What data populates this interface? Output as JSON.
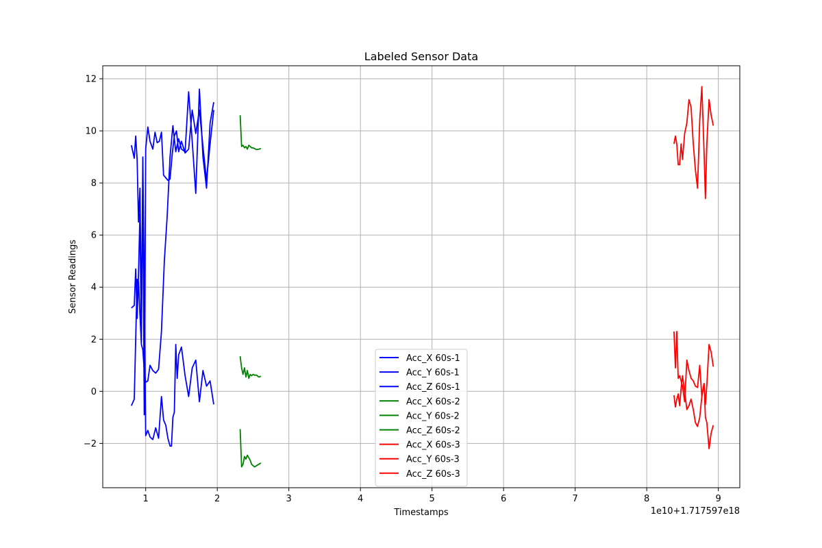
{
  "chart_data": {
    "type": "line",
    "title": "Labeled Sensor Data",
    "xlabel": "Timestamps",
    "ylabel": "Sensor Readings",
    "x_offset_label": "1e10+1.717597e18",
    "xlim": [
      0.4,
      9.3
    ],
    "ylim": [
      -3.7,
      12.5
    ],
    "x_ticks": [
      {
        "value": 1,
        "label": "1"
      },
      {
        "value": 2,
        "label": "2"
      },
      {
        "value": 3,
        "label": "3"
      },
      {
        "value": 4,
        "label": "4"
      },
      {
        "value": 5,
        "label": "5"
      },
      {
        "value": 6,
        "label": "6"
      },
      {
        "value": 7,
        "label": "7"
      },
      {
        "value": 8,
        "label": "8"
      },
      {
        "value": 9,
        "label": "9"
      }
    ],
    "y_ticks": [
      {
        "value": -2,
        "label": "−2"
      },
      {
        "value": 0,
        "label": "0"
      },
      {
        "value": 2,
        "label": "2"
      },
      {
        "value": 4,
        "label": "4"
      },
      {
        "value": 6,
        "label": "6"
      },
      {
        "value": 8,
        "label": "8"
      },
      {
        "value": 10,
        "label": "10"
      },
      {
        "value": 12,
        "label": "12"
      }
    ],
    "grid": true,
    "legend_position": "lower-center",
    "colors": {
      "blue": "#0000ff",
      "green": "#008000",
      "red": "#ff0000"
    },
    "series": [
      {
        "name": "Acc_X 60s-1",
        "color": "#0000ff",
        "x": [
          0.8,
          0.84,
          0.88,
          0.9,
          0.92,
          0.94,
          0.96,
          0.98,
          1.0,
          1.03,
          1.06,
          1.1,
          1.14,
          1.18,
          1.22,
          1.26,
          1.3,
          1.34,
          1.38,
          1.42,
          1.46,
          1.5,
          1.55,
          1.6,
          1.65,
          1.7,
          1.75,
          1.8,
          1.85,
          1.9,
          1.95
        ],
        "y": [
          -0.55,
          -0.3,
          4.3,
          4.2,
          2.95,
          1.8,
          1.6,
          0.8,
          0.35,
          0.4,
          1.0,
          0.8,
          0.7,
          0.85,
          2.3,
          5.0,
          6.7,
          9.0,
          10.2,
          9.2,
          9.7,
          9.3,
          9.2,
          11.5,
          9.6,
          7.6,
          11.6,
          9.0,
          7.8,
          10.3,
          11.1
        ]
      },
      {
        "name": "Acc_Y 60s-1",
        "color": "#0000ff",
        "x": [
          0.8,
          0.84,
          0.86,
          0.88,
          0.9,
          0.92,
          0.94,
          0.96,
          0.98,
          1.0,
          1.03,
          1.06,
          1.1,
          1.13,
          1.16,
          1.19,
          1.22,
          1.25,
          1.28,
          1.31,
          1.34,
          1.37,
          1.4,
          1.43,
          1.46,
          1.5,
          1.55,
          1.6,
          1.65,
          1.7,
          1.75,
          1.8,
          1.85,
          1.9,
          1.95
        ],
        "y": [
          9.45,
          8.95,
          9.8,
          8.9,
          6.5,
          7.8,
          3.0,
          7.9,
          -0.9,
          9.3,
          10.15,
          9.6,
          9.3,
          9.95,
          9.55,
          9.6,
          9.95,
          8.3,
          8.2,
          8.1,
          8.15,
          9.1,
          9.8,
          10.0,
          9.2,
          9.6,
          9.15,
          9.3,
          10.8,
          9.9,
          10.8,
          9.4,
          8.1,
          9.5,
          10.8
        ]
      },
      {
        "name": "Acc_Z 60s-1",
        "color": "#0000ff",
        "x": [
          0.8,
          0.84,
          0.86,
          0.88,
          0.9,
          0.92,
          0.94,
          0.96,
          0.98,
          1.0,
          1.03,
          1.06,
          1.1,
          1.14,
          1.18,
          1.22,
          1.25,
          1.28,
          1.31,
          1.34,
          1.36,
          1.38,
          1.4,
          1.42,
          1.44,
          1.46,
          1.5,
          1.55,
          1.6,
          1.65,
          1.7,
          1.75,
          1.8,
          1.85,
          1.9,
          1.95
        ],
        "y": [
          3.2,
          3.3,
          4.7,
          2.8,
          4.5,
          6.8,
          1.9,
          9.0,
          4.0,
          -1.7,
          -1.5,
          -1.75,
          -1.85,
          -1.4,
          -1.8,
          -0.2,
          -1.1,
          -1.3,
          -1.8,
          -2.1,
          -2.1,
          -1.0,
          -0.8,
          1.8,
          0.5,
          1.4,
          1.7,
          0.6,
          -0.2,
          0.9,
          1.2,
          -0.4,
          0.8,
          0.2,
          0.4,
          -0.5
        ]
      },
      {
        "name": "Acc_X 60s-2",
        "color": "#008000",
        "x": [
          2.32,
          2.34,
          2.36,
          2.38,
          2.4,
          2.42,
          2.44,
          2.46,
          2.48,
          2.5,
          2.52,
          2.55,
          2.58,
          2.61
        ],
        "y": [
          1.35,
          0.9,
          0.65,
          0.9,
          0.55,
          0.8,
          0.5,
          0.65,
          0.6,
          0.65,
          0.62,
          0.62,
          0.55,
          0.58
        ]
      },
      {
        "name": "Acc_Y 60s-2",
        "color": "#008000",
        "x": [
          2.32,
          2.34,
          2.36,
          2.38,
          2.4,
          2.42,
          2.44,
          2.46,
          2.48,
          2.5,
          2.52,
          2.55,
          2.58,
          2.61
        ],
        "y": [
          10.6,
          9.4,
          9.45,
          9.35,
          9.4,
          9.3,
          9.45,
          9.4,
          9.35,
          9.35,
          9.32,
          9.28,
          9.3,
          9.32
        ]
      },
      {
        "name": "Acc_Z 60s-2",
        "color": "#008000",
        "x": [
          2.32,
          2.34,
          2.36,
          2.38,
          2.4,
          2.42,
          2.44,
          2.46,
          2.48,
          2.5,
          2.52,
          2.55,
          2.58,
          2.61
        ],
        "y": [
          -1.45,
          -2.9,
          -2.8,
          -2.5,
          -2.6,
          -2.45,
          -2.55,
          -2.65,
          -2.8,
          -2.85,
          -2.9,
          -2.85,
          -2.8,
          -2.75
        ]
      },
      {
        "name": "Acc_X 60s-3",
        "color": "#ff0000",
        "x": [
          8.38,
          8.4,
          8.42,
          8.44,
          8.46,
          8.48,
          8.5,
          8.53,
          8.56,
          8.59,
          8.62,
          8.65,
          8.68,
          8.71,
          8.74,
          8.77,
          8.8,
          8.82,
          8.84,
          8.87,
          8.9,
          8.93
        ],
        "y": [
          2.3,
          0.9,
          2.3,
          0.5,
          0.6,
          0.4,
          0.2,
          -0.4,
          1.2,
          0.8,
          0.5,
          0.4,
          0.2,
          0.15,
          1.0,
          -0.2,
          0.3,
          -0.5,
          0.25,
          1.8,
          1.5,
          0.95
        ]
      },
      {
        "name": "Acc_Y 60s-3",
        "color": "#ff0000",
        "x": [
          8.38,
          8.4,
          8.42,
          8.44,
          8.46,
          8.48,
          8.5,
          8.53,
          8.56,
          8.59,
          8.62,
          8.65,
          8.68,
          8.71,
          8.74,
          8.77,
          8.8,
          8.82,
          8.84,
          8.87,
          8.9,
          8.93
        ],
        "y": [
          9.5,
          9.8,
          9.5,
          8.7,
          8.7,
          9.5,
          8.9,
          9.9,
          10.3,
          11.2,
          10.9,
          9.5,
          8.5,
          7.8,
          10.4,
          11.7,
          9.2,
          7.4,
          9.5,
          11.2,
          10.6,
          10.2
        ]
      },
      {
        "name": "Acc_Z 60s-3",
        "color": "#ff0000",
        "x": [
          8.38,
          8.4,
          8.42,
          8.44,
          8.46,
          8.48,
          8.5,
          8.53,
          8.56,
          8.59,
          8.62,
          8.65,
          8.68,
          8.71,
          8.74,
          8.77,
          8.8,
          8.82,
          8.84,
          8.87,
          8.9,
          8.93
        ],
        "y": [
          -0.15,
          -0.6,
          -0.3,
          -0.1,
          -0.55,
          0.1,
          0.6,
          0.0,
          -0.7,
          -0.55,
          -0.3,
          -0.7,
          -1.2,
          -1.35,
          -1.0,
          -0.2,
          0.3,
          -1.0,
          -1.2,
          -2.2,
          -1.6,
          -1.3
        ]
      }
    ]
  }
}
